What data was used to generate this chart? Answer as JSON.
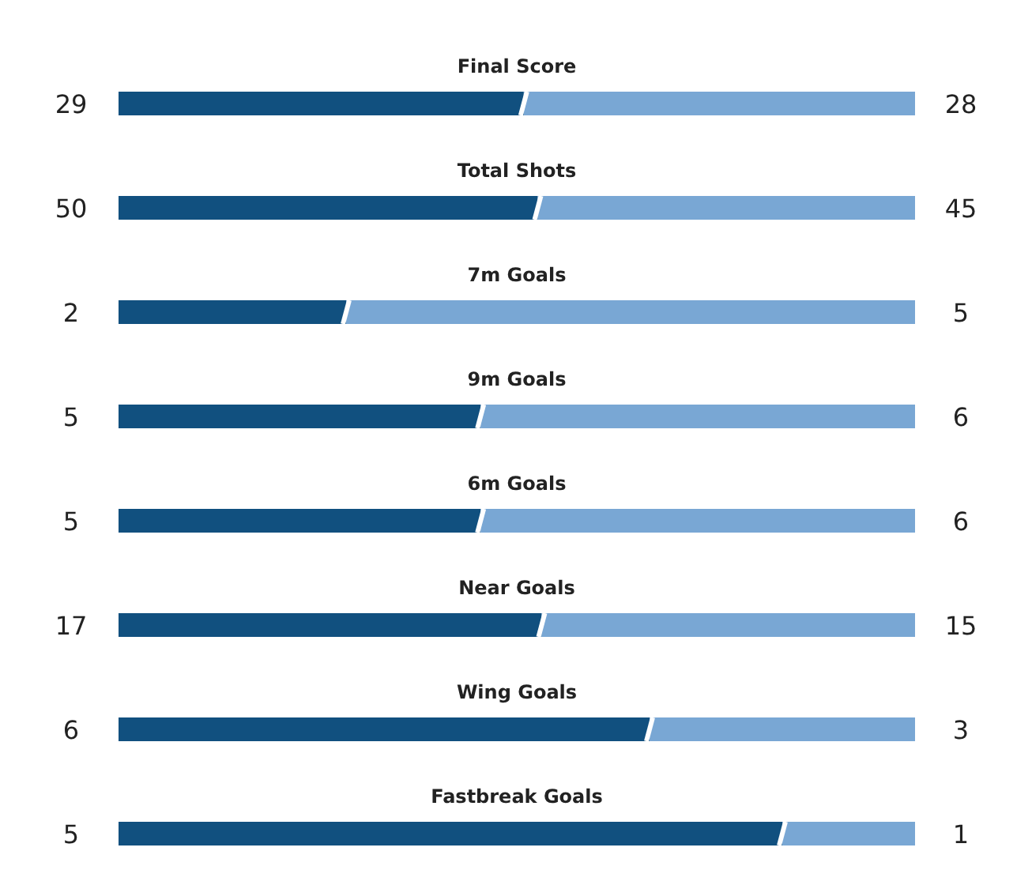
{
  "chart_data": [
    {
      "type": "bar",
      "orientation": "horizontal",
      "stacked": true,
      "data_labels": true,
      "title": "Final Score",
      "categories": [
        null
      ],
      "series": [
        {
          "color": "#11507f",
          "values": [
            29
          ]
        },
        {
          "color": "#79a7d4",
          "values": [
            28
          ]
        }
      ]
    },
    {
      "type": "bar",
      "orientation": "horizontal",
      "stacked": true,
      "data_labels": true,
      "title": "Total Shots",
      "categories": [
        null
      ],
      "series": [
        {
          "color": "#11507f",
          "values": [
            50
          ]
        },
        {
          "color": "#79a7d4",
          "values": [
            45
          ]
        }
      ]
    },
    {
      "type": "bar",
      "orientation": "horizontal",
      "stacked": true,
      "data_labels": true,
      "title": "7m Goals",
      "categories": [
        null
      ],
      "series": [
        {
          "color": "#11507f",
          "values": [
            2
          ]
        },
        {
          "color": "#79a7d4",
          "values": [
            5
          ]
        }
      ]
    },
    {
      "type": "bar",
      "orientation": "horizontal",
      "stacked": true,
      "data_labels": true,
      "title": "9m Goals",
      "categories": [
        null
      ],
      "series": [
        {
          "color": "#11507f",
          "values": [
            5
          ]
        },
        {
          "color": "#79a7d4",
          "values": [
            6
          ]
        }
      ]
    },
    {
      "type": "bar",
      "orientation": "horizontal",
      "stacked": true,
      "data_labels": true,
      "title": "6m Goals",
      "categories": [
        null
      ],
      "series": [
        {
          "color": "#11507f",
          "values": [
            5
          ]
        },
        {
          "color": "#79a7d4",
          "values": [
            6
          ]
        }
      ]
    },
    {
      "type": "bar",
      "orientation": "horizontal",
      "stacked": true,
      "data_labels": true,
      "title": "Near Goals",
      "categories": [
        null
      ],
      "series": [
        {
          "color": "#11507f",
          "values": [
            17
          ]
        },
        {
          "color": "#79a7d4",
          "values": [
            15
          ]
        }
      ]
    },
    {
      "type": "bar",
      "orientation": "horizontal",
      "stacked": true,
      "data_labels": true,
      "title": "Wing Goals",
      "categories": [
        null
      ],
      "series": [
        {
          "color": "#11507f",
          "values": [
            6
          ]
        },
        {
          "color": "#79a7d4",
          "values": [
            3
          ]
        }
      ]
    },
    {
      "type": "bar",
      "orientation": "horizontal",
      "stacked": true,
      "data_labels": true,
      "title": "Fastbreak Goals",
      "categories": [
        null
      ],
      "series": [
        {
          "color": "#11507f",
          "values": [
            5
          ]
        },
        {
          "color": "#79a7d4",
          "values": [
            1
          ]
        }
      ]
    }
  ]
}
